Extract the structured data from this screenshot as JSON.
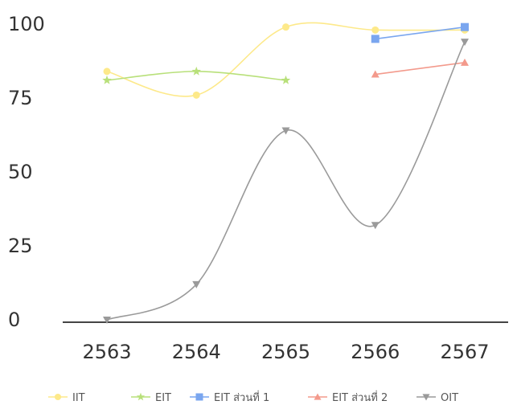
{
  "chart_data": {
    "type": "line",
    "x": [
      2563,
      2564,
      2565,
      2566,
      2567
    ],
    "xlim": [
      2563,
      2567
    ],
    "ylim": [
      0,
      100
    ],
    "yticks": [
      0,
      25,
      50,
      75,
      100
    ],
    "y_tick_labels": [
      "0",
      "25",
      "50",
      "75",
      "100"
    ],
    "x_tick_labels": [
      "2563",
      "2564",
      "2565",
      "2566",
      "2567"
    ],
    "grid": false,
    "legend_position": "bottom",
    "series": [
      {
        "name": "IIT",
        "color": "#fde98a",
        "marker": "circle",
        "curve": "smooth",
        "values": [
          84,
          76,
          99,
          98,
          98
        ]
      },
      {
        "name": "EIT",
        "color": "#b8e07a",
        "marker": "star",
        "curve": "smooth",
        "values": [
          81,
          84,
          81,
          null,
          null
        ]
      },
      {
        "name": "EIT ส่วนที่ 1",
        "color": "#7aa6ef",
        "marker": "square",
        "curve": "straight",
        "values": [
          null,
          null,
          null,
          95,
          99
        ]
      },
      {
        "name": "EIT ส่วนที่ 2",
        "color": "#f39a8c",
        "marker": "triangle",
        "curve": "straight",
        "values": [
          null,
          null,
          null,
          83,
          87
        ]
      },
      {
        "name": "OIT",
        "color": "#9a9a9a",
        "marker": "triangle-down",
        "curve": "smooth",
        "values": [
          0,
          12,
          64,
          32,
          94
        ]
      }
    ]
  }
}
